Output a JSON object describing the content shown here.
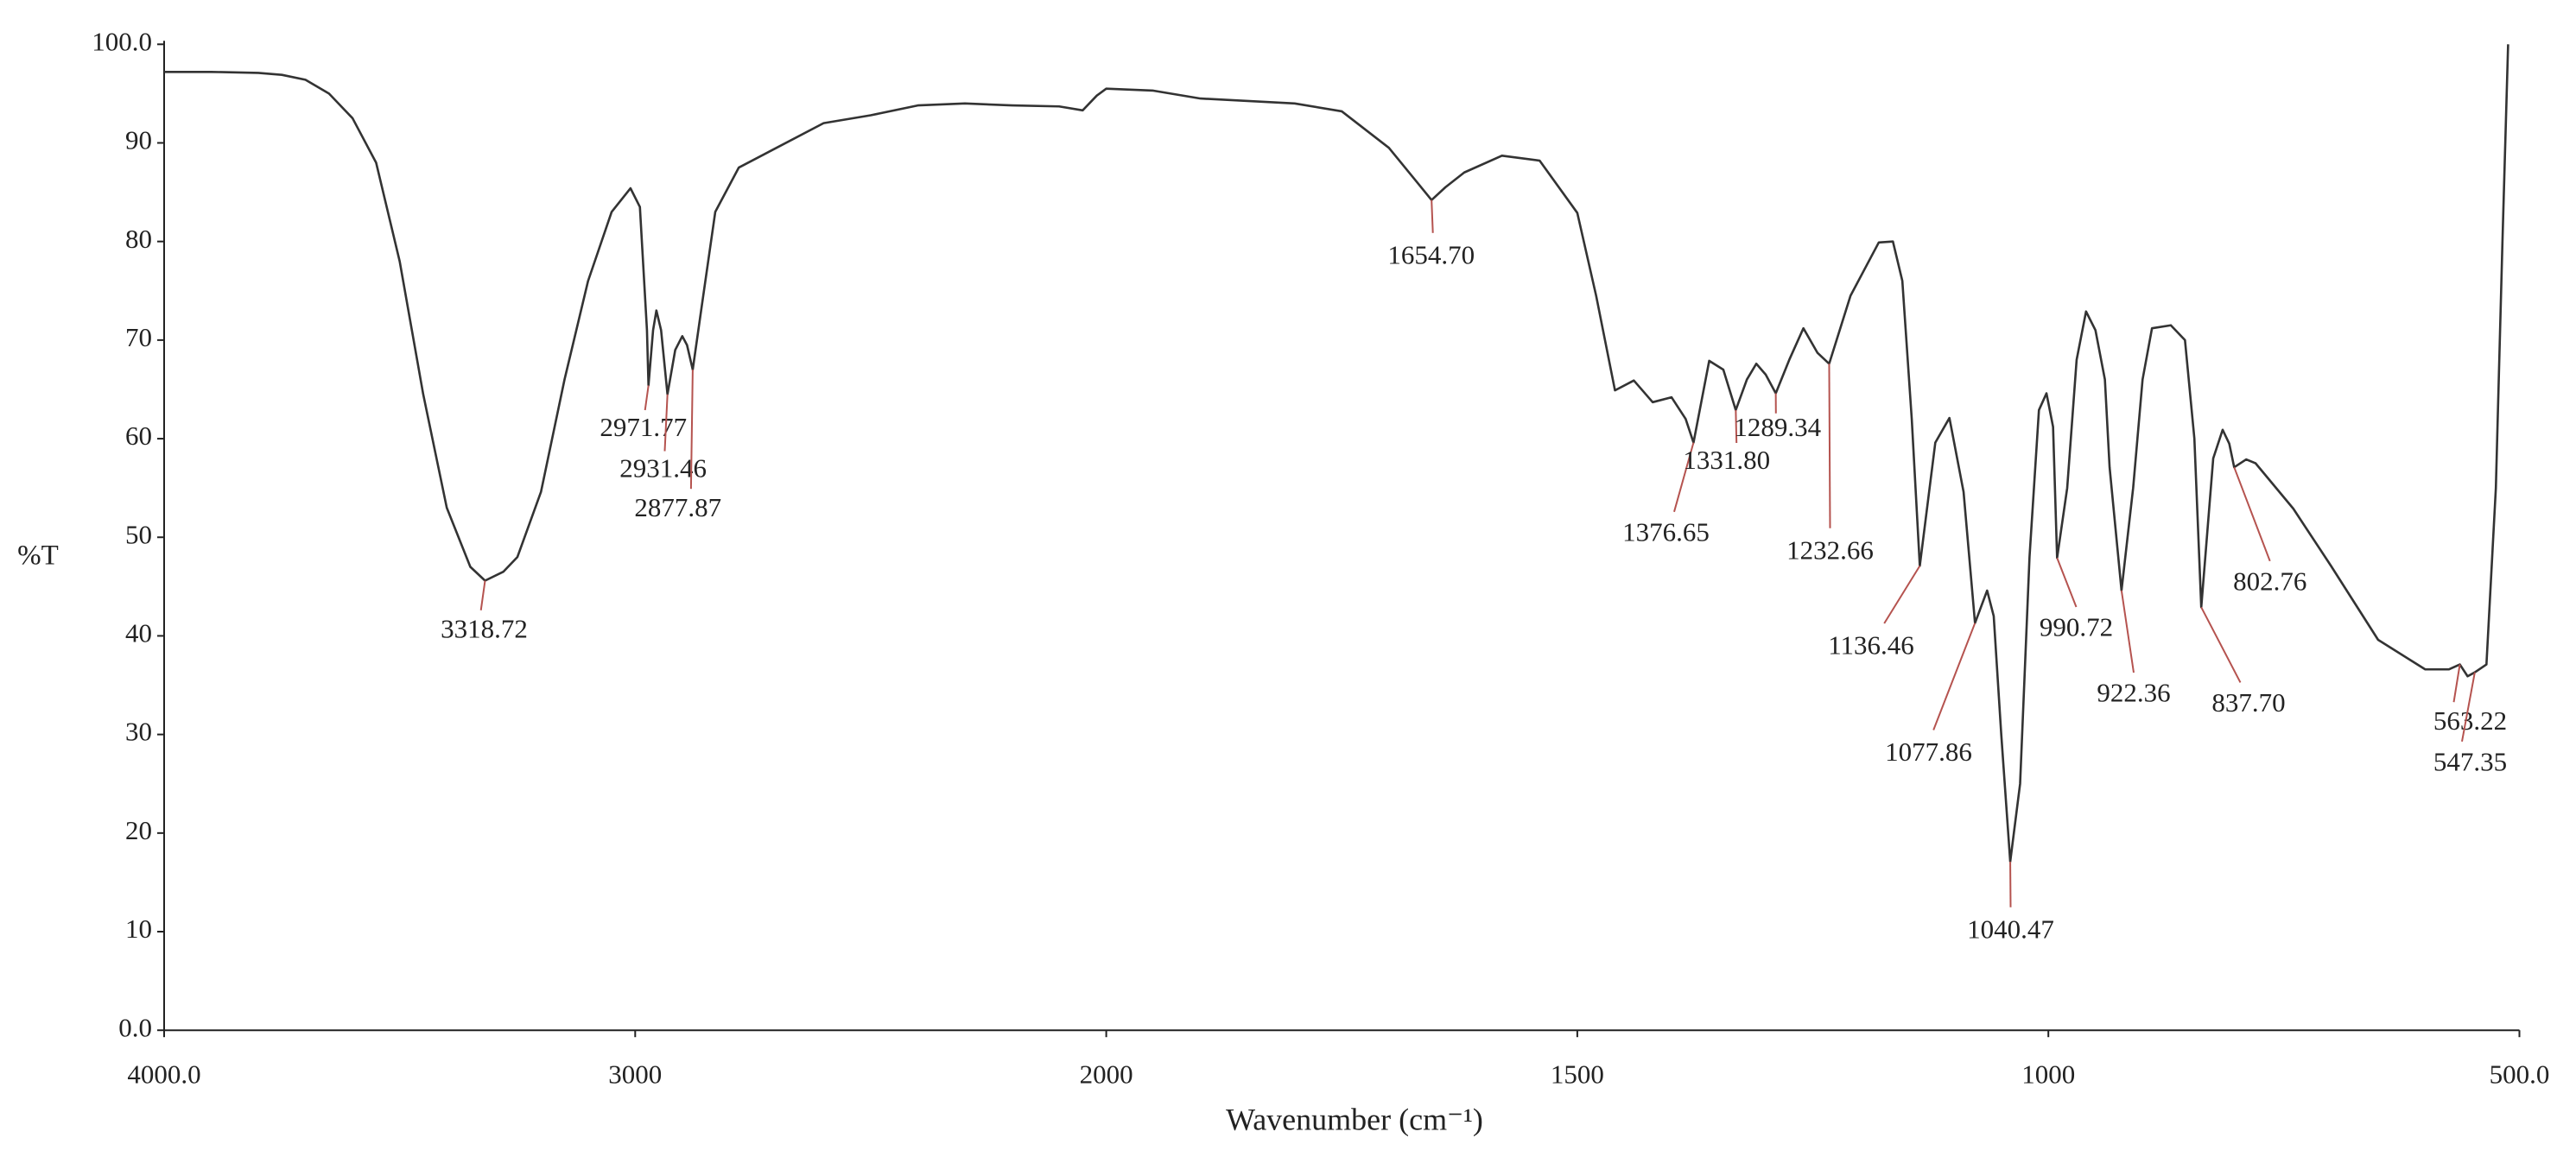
{
  "chart_data": {
    "type": "line",
    "xlabel": "Wavenumber (cm⁻¹)",
    "ylabel": "%T",
    "xscale": "tick-equal",
    "xlim": [
      4000,
      500
    ],
    "ylim": [
      0,
      100
    ],
    "xticks": [
      {
        "value": 4000,
        "label": "4000.0"
      },
      3000,
      2000,
      1500,
      1000,
      {
        "value": 500,
        "label": "500.0"
      }
    ],
    "yticks": [
      {
        "value": 0,
        "label": "0.0"
      },
      10,
      20,
      30,
      40,
      50,
      60,
      70,
      80,
      90,
      {
        "value": 100,
        "label": "100.0"
      }
    ],
    "color": "#333333",
    "annotation_color": "#b5534f",
    "x": [
      4000,
      3900,
      3800,
      3750,
      3700,
      3650,
      3600,
      3550,
      3500,
      3450,
      3400,
      3350,
      3318.72,
      3280,
      3250,
      3200,
      3150,
      3100,
      3050,
      3010,
      2990,
      2975,
      2971.77,
      2962,
      2955,
      2945,
      2931.46,
      2915,
      2900,
      2890,
      2877.87,
      2860,
      2830,
      2780,
      2700,
      2600,
      2500,
      2400,
      2300,
      2200,
      2100,
      2050,
      2020,
      2000,
      1950,
      1900,
      1800,
      1750,
      1700,
      1670,
      1654.7,
      1640,
      1620,
      1580,
      1540,
      1500,
      1480,
      1460,
      1440,
      1420,
      1400,
      1385,
      1376.65,
      1360,
      1345,
      1331.8,
      1320,
      1310,
      1300,
      1289.34,
      1275,
      1260,
      1245,
      1232.66,
      1210,
      1180,
      1165,
      1155,
      1145,
      1136.46,
      1120,
      1105,
      1090,
      1077.86,
      1065,
      1058,
      1050,
      1040.47,
      1030,
      1020,
      1010,
      1002,
      995,
      990.72,
      980,
      970,
      960,
      950,
      940,
      935,
      922.36,
      910,
      900,
      890,
      870,
      855,
      845,
      837.7,
      825,
      815,
      808,
      802.76,
      790,
      780,
      740,
      700,
      650,
      600,
      575,
      563.22,
      555,
      547.35,
      535,
      525,
      518,
      512
    ],
    "values": [
      97.2,
      97.2,
      97.1,
      96.9,
      96.4,
      95,
      92.5,
      88,
      78,
      64.5,
      53,
      47,
      45.6,
      46.5,
      48,
      54.6,
      66,
      76,
      83,
      85.4,
      83.5,
      71,
      65.4,
      71,
      73,
      71,
      64.5,
      69,
      70.4,
      69.5,
      67,
      73,
      83,
      87.5,
      89.5,
      92,
      92.8,
      93.8,
      94,
      93.8,
      93.7,
      93.3,
      94.8,
      95.5,
      95.3,
      94.5,
      94,
      93.2,
      89.5,
      86,
      84.2,
      85.5,
      87,
      88.7,
      88.2,
      82.9,
      74.5,
      64.9,
      65.9,
      63.7,
      64.2,
      62,
      59.6,
      67.9,
      67,
      62.9,
      66,
      67.6,
      66.5,
      64.6,
      68,
      71.2,
      68.7,
      67.6,
      74.5,
      79.9,
      80,
      76,
      62,
      47.1,
      59.6,
      62.1,
      54.6,
      41.3,
      44.6,
      42,
      30,
      17.1,
      25,
      48,
      62.9,
      64.6,
      61.2,
      47.9,
      55,
      68,
      72.9,
      71,
      66,
      57.1,
      44.6,
      55,
      66,
      71.2,
      71.5,
      70,
      60,
      42.9,
      58,
      60.9,
      59.5,
      57.1,
      57.9,
      57.5,
      52.9,
      47.1,
      39.6,
      36.6,
      36.6,
      37.1,
      35.9,
      36.3,
      37.1,
      55,
      80,
      100
    ],
    "peaks": [
      {
        "x": 3318.72,
        "label": "3318.72"
      },
      {
        "x": 2971.77,
        "label": "2971.77"
      },
      {
        "x": 2931.46,
        "label": "2931.46"
      },
      {
        "x": 2877.87,
        "label": "2877.87"
      },
      {
        "x": 1654.7,
        "label": "1654.70"
      },
      {
        "x": 1376.65,
        "label": "1376.65"
      },
      {
        "x": 1331.8,
        "label": "1331.80"
      },
      {
        "x": 1289.34,
        "label": "1289.34"
      },
      {
        "x": 1232.66,
        "label": "1232.66"
      },
      {
        "x": 1136.46,
        "label": "1136.46"
      },
      {
        "x": 1077.86,
        "label": "1077.86"
      },
      {
        "x": 1040.47,
        "label": "1040.47"
      },
      {
        "x": 990.72,
        "label": "990.72"
      },
      {
        "x": 922.36,
        "label": "922.36"
      },
      {
        "x": 837.7,
        "label": "837.70"
      },
      {
        "x": 802.76,
        "label": "802.76"
      },
      {
        "x": 563.22,
        "label": "563.22"
      },
      {
        "x": 547.35,
        "label": "547.35"
      }
    ]
  }
}
